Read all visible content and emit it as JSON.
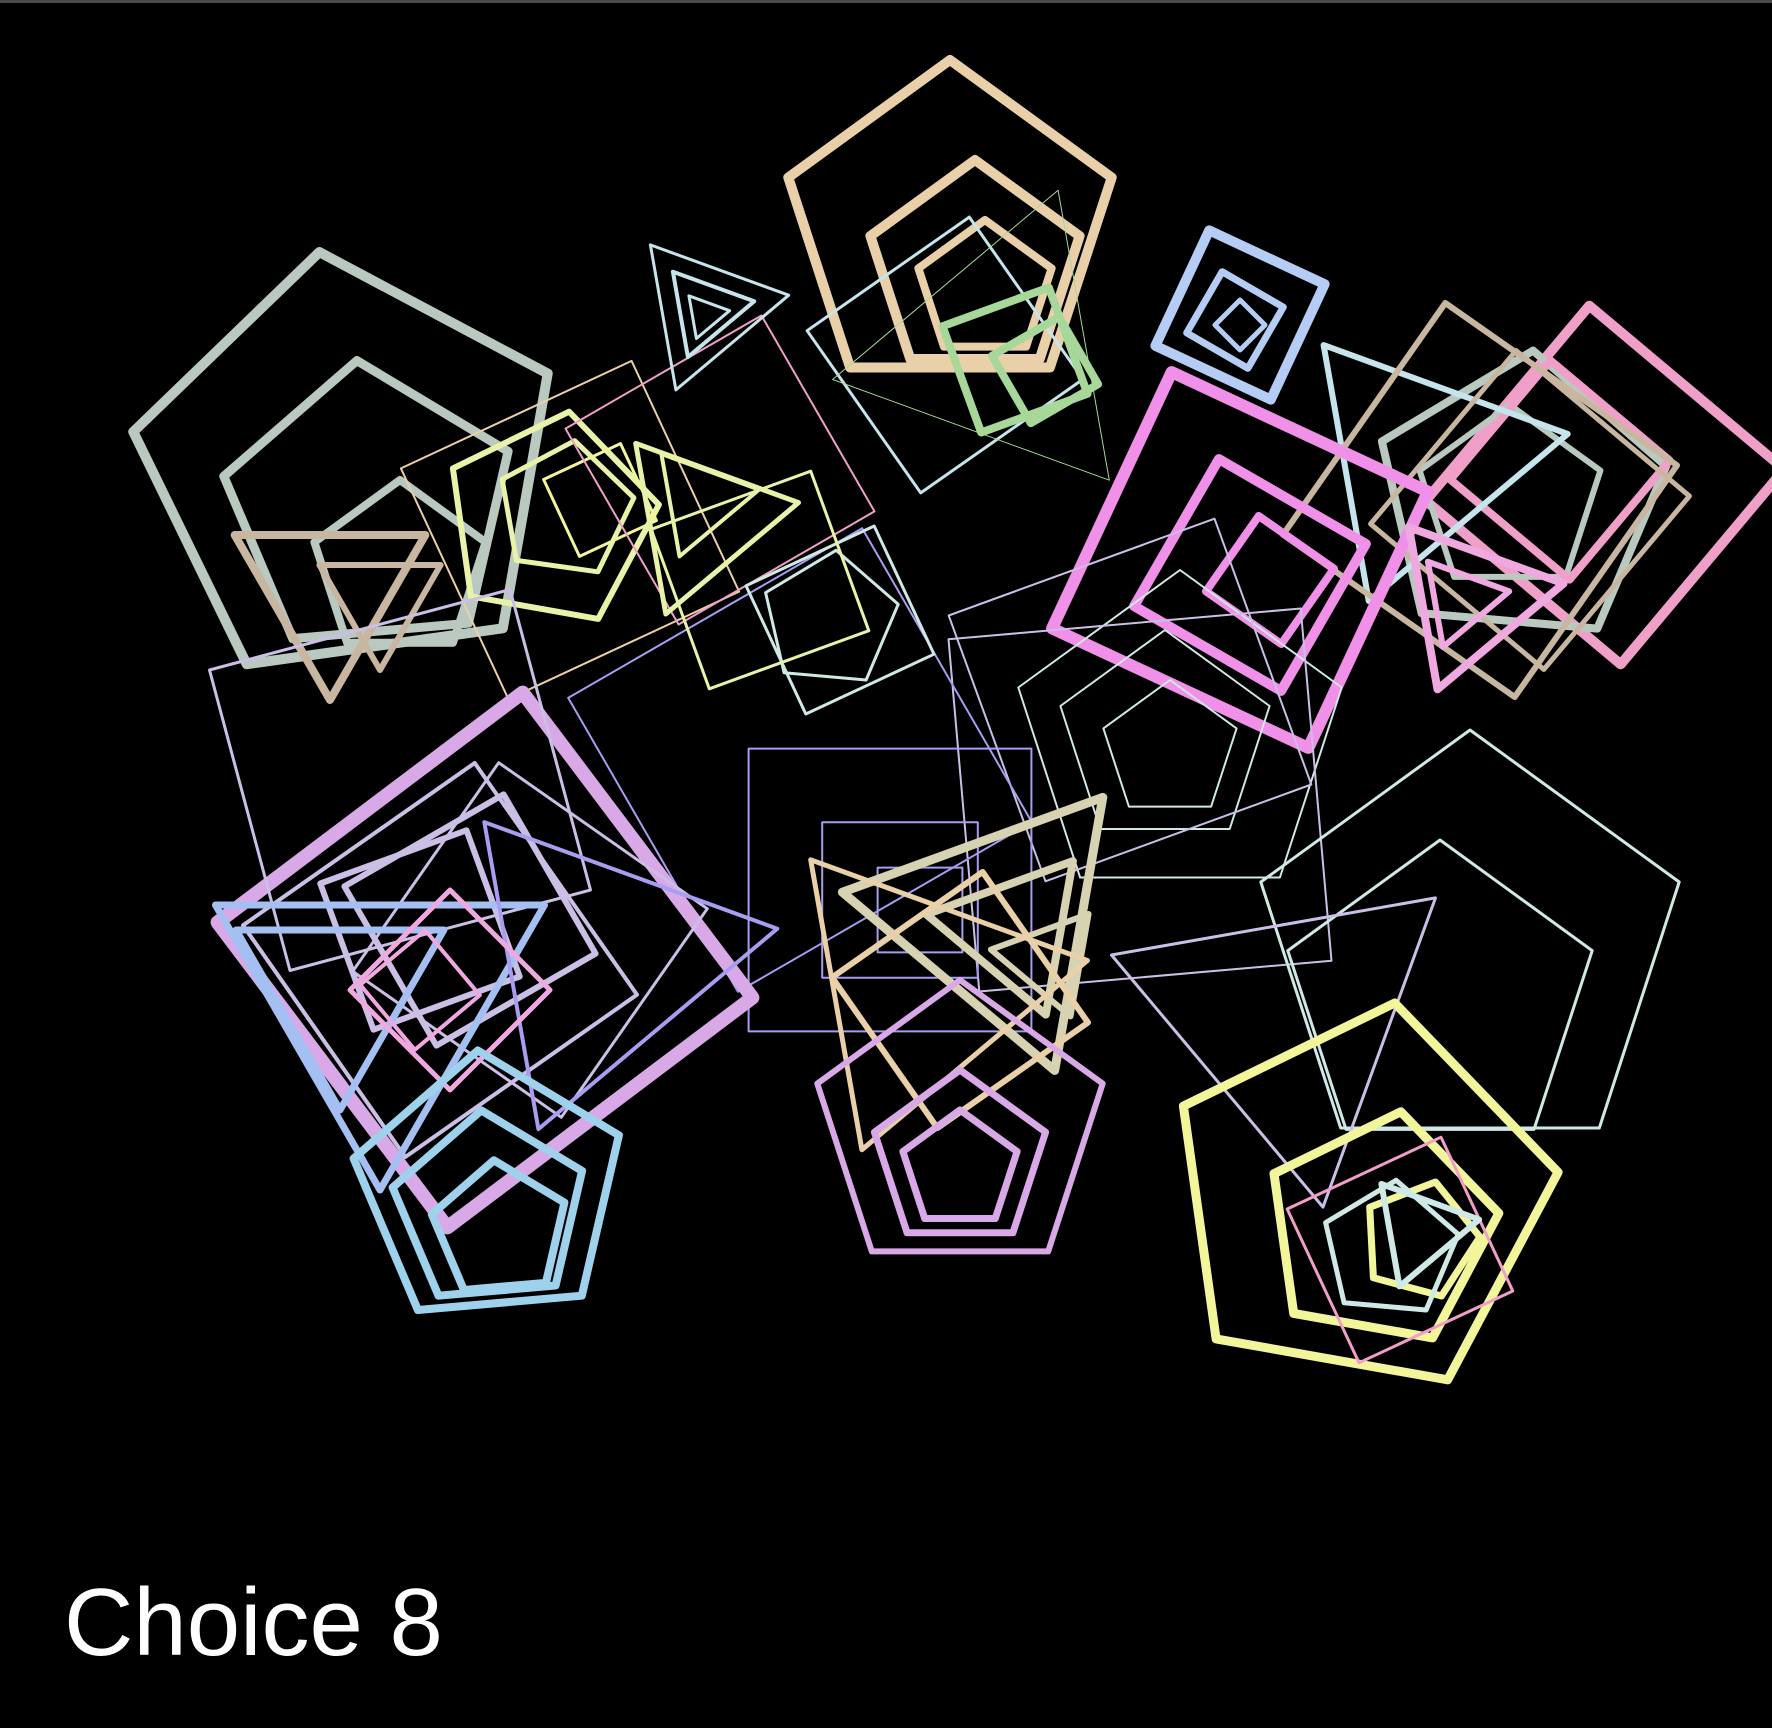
{
  "caption": "Choice 8",
  "background_color": "#000000",
  "shape_palette": [
    "#b9c9c0",
    "#ead0a8",
    "#c6e4ec",
    "#b5cdf4",
    "#a7d89a",
    "#f0a0c8",
    "#f090e8",
    "#c9b6a0",
    "#e8f2a8",
    "#f3f59a",
    "#cbbfe6",
    "#a89df0",
    "#d9a8e6",
    "#9ed2ec",
    "#cfe9e6",
    "#a4bff2",
    "#d7d2b2",
    "#f0a8e0"
  ],
  "shape_types": [
    "triangle",
    "square",
    "pentagon"
  ]
}
